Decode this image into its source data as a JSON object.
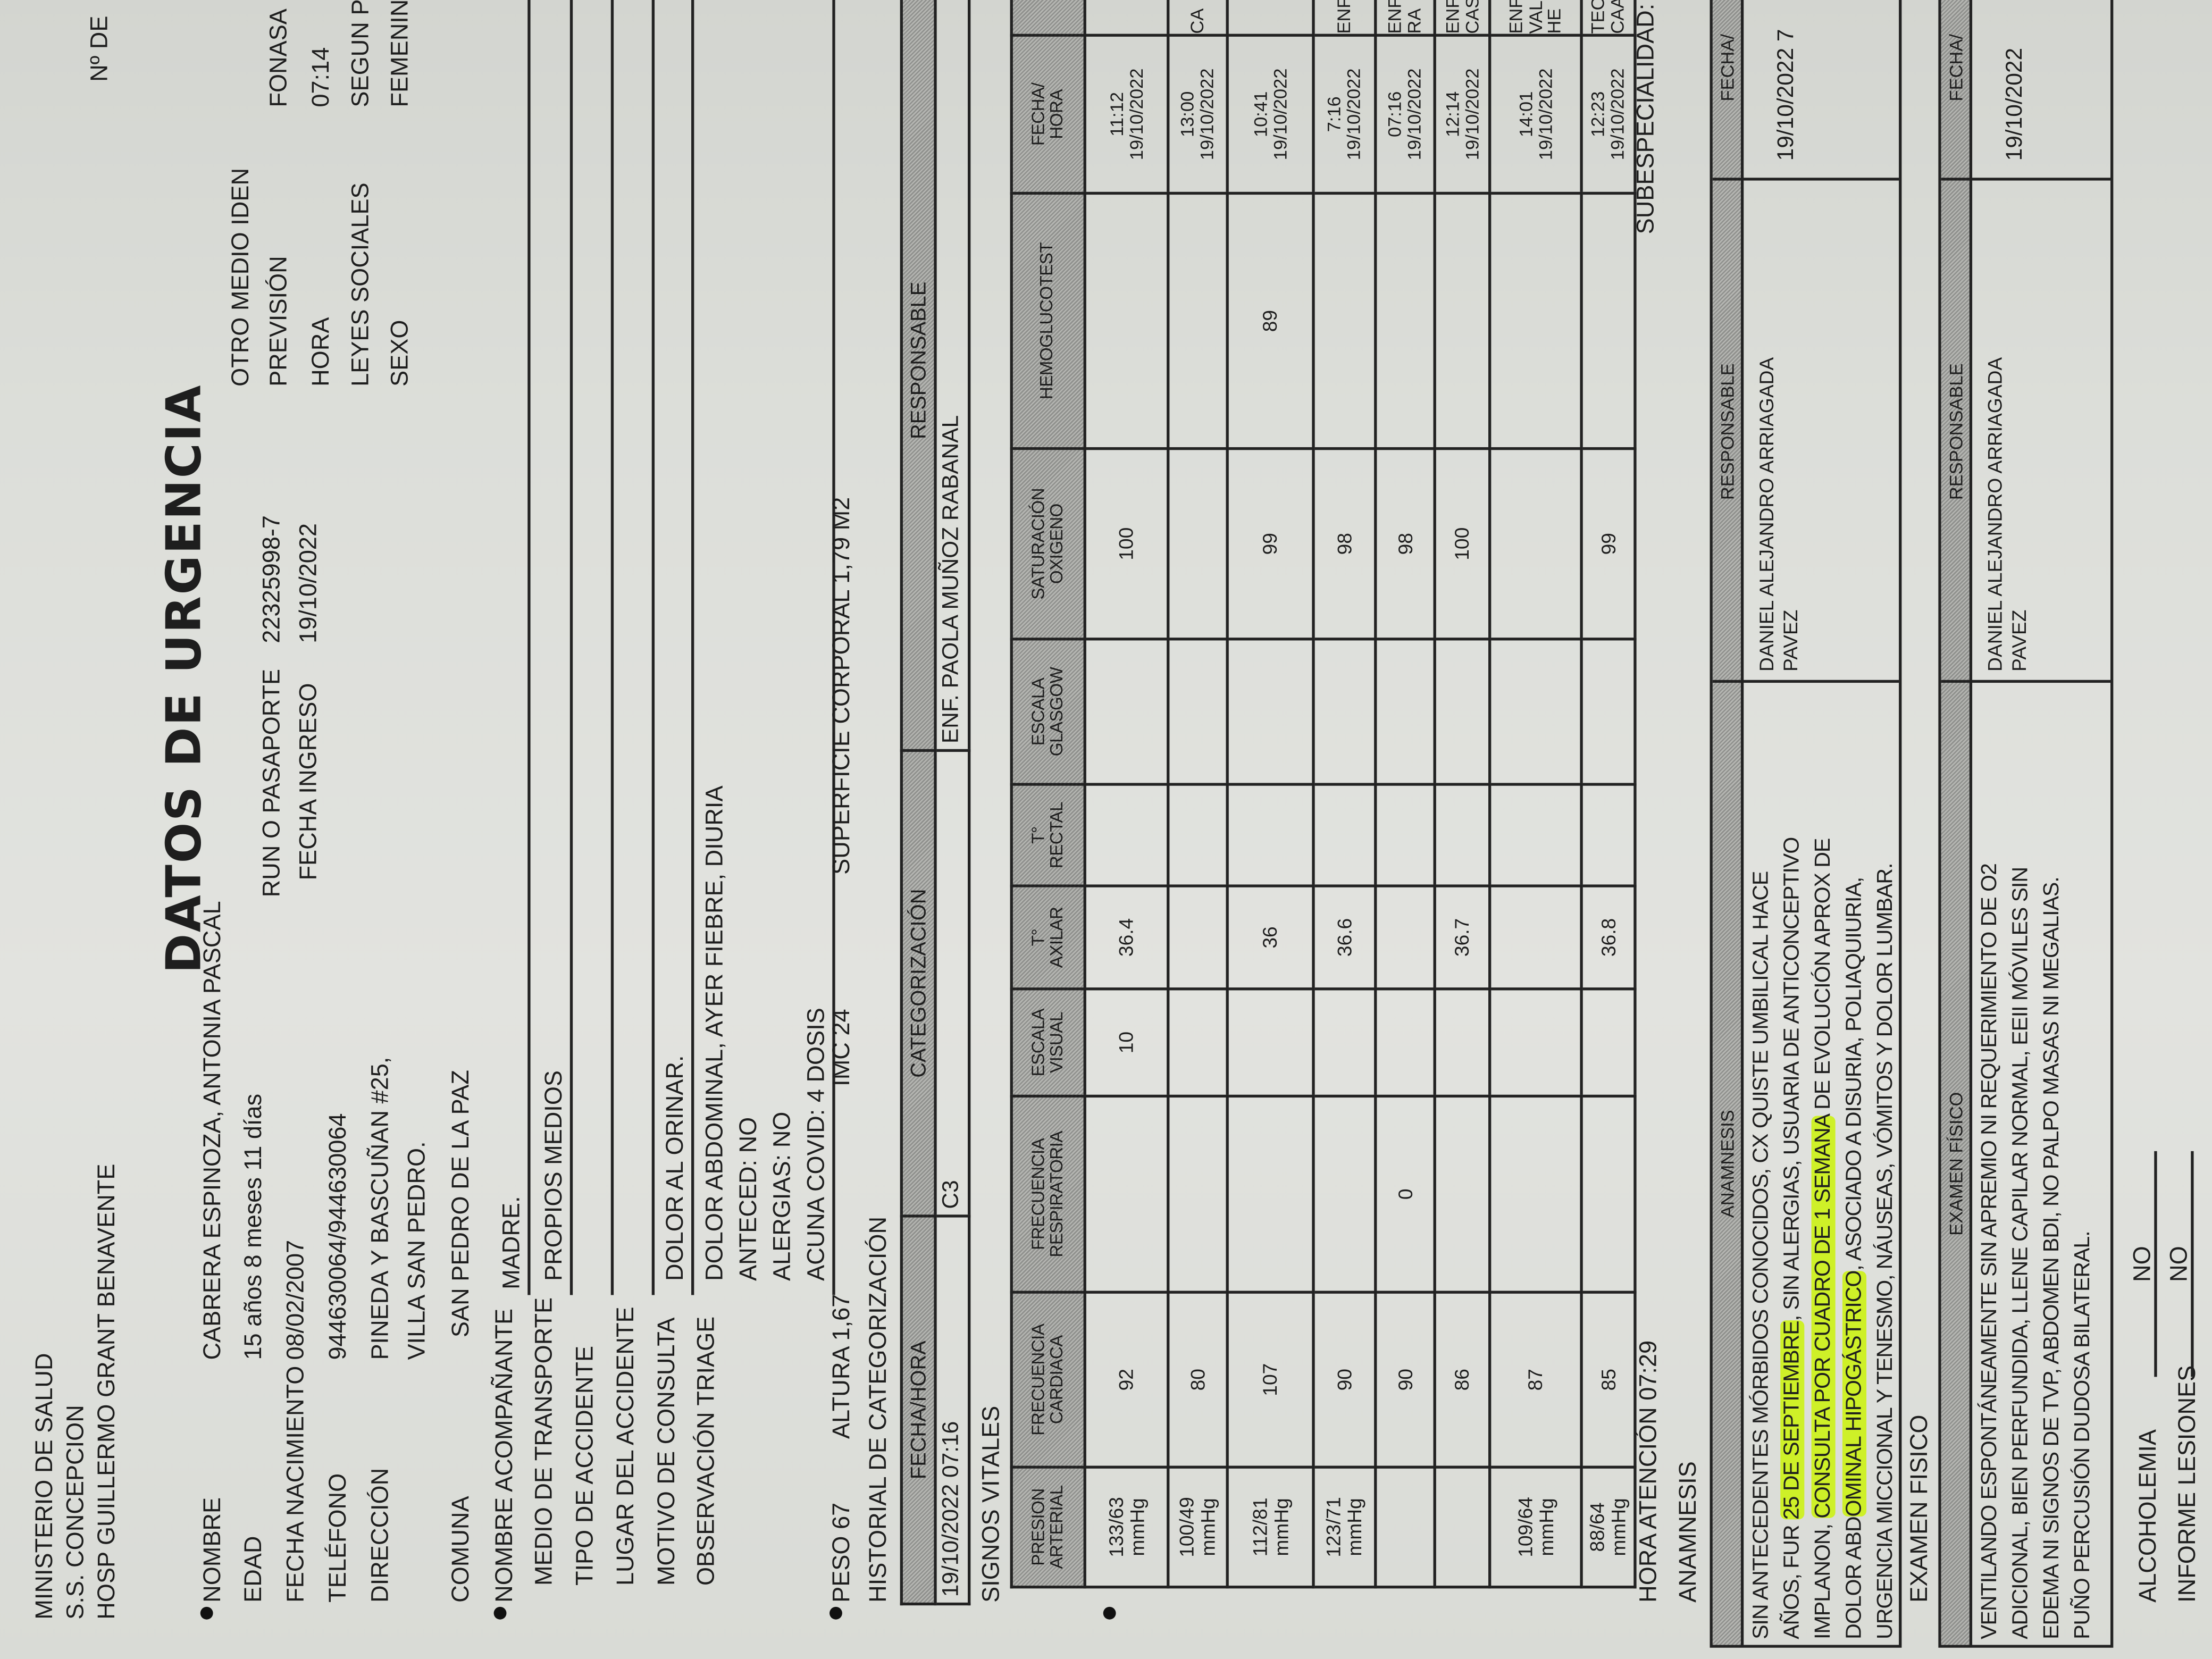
{
  "header": {
    "lines": [
      "MINISTERIO DE SALUD",
      "S.S. CONCEPCION",
      "HOSP GUILLERMO GRANT BENAVENTE"
    ],
    "title": "DATOS DE URGENCIA",
    "doc_number_label": "Nº DE"
  },
  "patient": {
    "nombre": {
      "label": "NOMBRE",
      "value": "CABRERA ESPINOZA, ANTONIA PASCAL"
    },
    "edad": {
      "label": "EDAD",
      "value": "15 años 8 meses 11 días"
    },
    "fecha_nacimiento": {
      "label": "FECHA NACIMIENTO",
      "value": "08/02/2007"
    },
    "telefono": {
      "label": "TELÉFONO",
      "value": "944630064/944630064"
    },
    "direccion": {
      "label": "DIRECCIÓN",
      "value": "PINEDA Y BASCUÑAN #25,",
      "value2": "VILLA SAN PEDRO."
    },
    "comuna": {
      "label": "COMUNA",
      "value": "SAN PEDRO DE LA PAZ"
    },
    "acompanante": {
      "label": "NOMBRE ACOMPAÑANTE",
      "value": "MADRE."
    },
    "transporte": {
      "label": "MEDIO DE TRANSPORTE",
      "value": "PROPIOS MEDIOS"
    },
    "tipo_accidente": {
      "label": "TIPO DE ACCIDENTE",
      "value": ""
    },
    "lugar_accidente": {
      "label": "LUGAR DEL ACCIDENTE",
      "value": ""
    },
    "motivo": {
      "label": "MOTIVO DE CONSULTA",
      "value": "DOLOR AL ORINAR."
    },
    "triage": {
      "label": "OBSERVACIÓN TRIAGE",
      "lines": [
        "DOLOR ABDOMINAL, AYER FIEBRE, DIURIA",
        "ANTECED: NO",
        "ALERGIAS: NO",
        "ACUNA COVID: 4 DOSIS"
      ]
    },
    "run": {
      "label": "RUN O PASAPORTE",
      "value": "22325998-7"
    },
    "fecha_ingreso": {
      "label": "FECHA INGRESO",
      "value": "19/10/2022"
    },
    "otro_medio": {
      "label": "OTRO MEDIO IDEN"
    },
    "prevision": {
      "label": "PREVISIÓN",
      "value": "FONASA"
    },
    "hora": {
      "label": "HORA",
      "value": "07:14"
    },
    "leyes_sociales": {
      "label": "LEYES SOCIALES",
      "value": "SEGUN P"
    },
    "sexo": {
      "label": "SEXO",
      "value": "FEMENIN"
    }
  },
  "measures": {
    "peso": "PESO 67",
    "altura": "ALTURA 1,67",
    "imc": "IMC 24",
    "superficie": "SUPERFICIE CORPORAL 1,79 M2"
  },
  "categorization": {
    "title": "HISTORIAL DE CATEGORIZACIÓN",
    "headers": [
      "FECHA/HORA",
      "CATEGORIZACIÓN",
      "RESPONSABLE"
    ],
    "row": [
      "19/10/2022 07:16",
      "C3",
      "ENF. PAOLA MUÑOZ RABANAL"
    ]
  },
  "vitals": {
    "title": "SIGNOS VITALES",
    "headers": [
      "PRESION\nARTERIAL",
      "FRECUENCIA\nCARDIACA",
      "FRECUENCIA\nRESPIRATORIA",
      "ESCALA\nVISUAL",
      "T°\nAXILAR",
      "T°\nRECTAL",
      "ESCALA\nGLASGOW",
      "SATURACIÓN\nOXIGENO",
      "HEMOGLUCOTEST",
      "FECHA/\nHORA",
      ""
    ],
    "rows": [
      [
        "133/63\nmmHg",
        "92",
        "",
        "10",
        "36.4",
        "",
        "",
        "100",
        "",
        "11:12\n19/10/2022",
        ""
      ],
      [
        "100/49\nmmHg",
        "80",
        "",
        "",
        "",
        "",
        "",
        "",
        "",
        "13:00\n19/10/2022",
        "CA"
      ],
      [
        "112/81\nmmHg",
        "107",
        "",
        "",
        "36",
        "",
        "",
        "99",
        "89",
        "10:41\n19/10/2022",
        ""
      ],
      [
        "123/71\nmmHg",
        "90",
        "",
        "",
        "36.6",
        "",
        "",
        "98",
        "",
        "7:16\n19/10/2022",
        "ENF. R"
      ],
      [
        "",
        "90",
        "0",
        "",
        "",
        "",
        "",
        "98",
        "",
        "07:16\n19/10/2022",
        "ENF. PA\nRA"
      ],
      [
        "",
        "86",
        "",
        "",
        "36.7",
        "",
        "",
        "100",
        "",
        "12:14\n19/10/2022",
        "ENF.\nCASTR"
      ],
      [
        "109/64\nmmHg",
        "87",
        "",
        "",
        "",
        "",
        "",
        "",
        "",
        "14:01\n19/10/2022",
        "ENF.\nVALE\nHE"
      ],
      [
        "88/64\nmmHg",
        "85",
        "",
        "",
        "36.8",
        "",
        "",
        "99",
        "",
        "12:23\n19/10/2022",
        "TEC.\nCAAMA"
      ]
    ]
  },
  "hora_atencion": "HORA ATENCIÓN 07:29",
  "subespecialidad": "SUBESPECIALIDAD:",
  "anamnesis": {
    "label": "ANAMNESIS",
    "headers": [
      "ANAMNESIS",
      "RESPONSABLE",
      "FECHA/"
    ],
    "lines": [
      [
        {
          "t": "SIN ANTECEDENTES MÓRBIDOS CONOCIDOS, CX QUISTE UMBILICAL HACE"
        }
      ],
      [
        {
          "t": "AÑOS, FUR "
        },
        {
          "t": "25 DE SEPTIEMBRE",
          "hl": true
        },
        {
          "t": ", SIN ALERGIAS, USUARIA DE ANTICONCEPTIVO"
        }
      ],
      [
        {
          "t": "IMPLANON, "
        },
        {
          "t": "CONSULTA POR CUADRO DE 1 SEMANA",
          "hl": true
        },
        {
          "t": " DE EVOLUCIÓN APROX DE"
        }
      ],
      [
        {
          "t": "DOLOR ABD"
        },
        {
          "t": "OMINAL HIPOGÁSTRICO",
          "hl": true
        },
        {
          "t": ", ASOCIADO A DISURIA, POLIAQUIURIA,"
        }
      ],
      [
        {
          "t": "URGENCIA MICCIONAL Y TENESMO, NÁUSEAS, VÓMITOS Y DOLOR LUMBAR."
        }
      ]
    ],
    "responsable": "DANIEL ALEJANDRO ARRIAGADA\nPAVEZ",
    "fecha": "19/10/2022 7"
  },
  "examen": {
    "label": "EXAMEN FISICO",
    "headers": [
      "EXAMEN FÍSICO",
      "RESPONSABLE",
      "FECHA/"
    ],
    "lines": [
      [
        {
          "t": "VENTILANDO ESPONTÁNEAMENTE SIN APREMIO NI REQUERIMIENTO DE O2"
        }
      ],
      [
        {
          "t": "ADICIONAL, BIEN PERFUNDIDA, LLENE CAPILAR NORMAL, EEII MÓVILES SIN"
        }
      ],
      [
        {
          "t": "EDEMA NI SIGNOS DE TVP, ABDOMEN BDI, NO PALPO MASAS NI MEGALIAS."
        }
      ],
      [
        {
          "t": "PUÑO PERCUSIÓN DUDOSA BILATERAL."
        }
      ]
    ],
    "responsable": "DANIEL ALEJANDRO ARRIAGADA\nPAVEZ",
    "fecha": "19/10/2022"
  },
  "alcoholemia": {
    "label": "ALCOHOLEMIA",
    "value": "NO"
  },
  "informe_lesiones": {
    "label": "INFORME LESIONES",
    "value": "NO"
  },
  "colors": {
    "highlight": "#cef028",
    "header_band": "#a3a4a0",
    "paper": "#e0e1dd"
  }
}
